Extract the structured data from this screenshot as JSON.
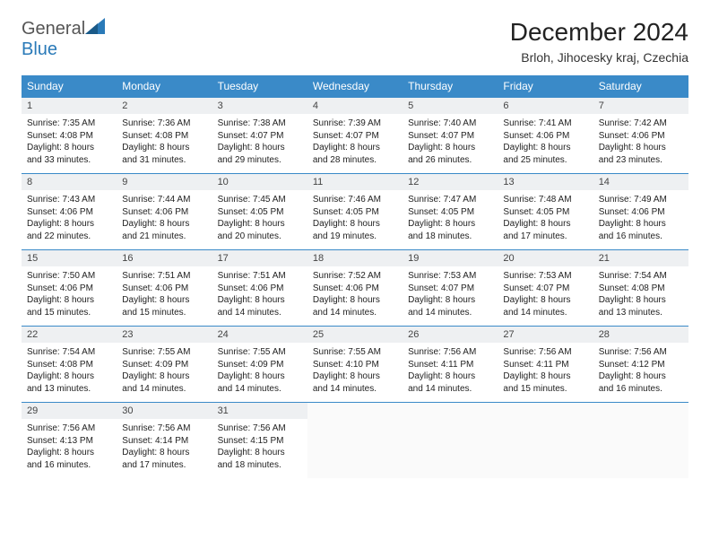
{
  "logo": {
    "part1": "General",
    "part2": "Blue"
  },
  "title": "December 2024",
  "location": "Brloh, Jihocesky kraj, Czechia",
  "day_headers": [
    "Sunday",
    "Monday",
    "Tuesday",
    "Wednesday",
    "Thursday",
    "Friday",
    "Saturday"
  ],
  "colors": {
    "header_bg": "#3a8ac8",
    "header_text": "#ffffff",
    "daynum_bg": "#eef0f2",
    "border": "#3a8ac8",
    "text": "#222222"
  },
  "typography": {
    "title_pt": 28,
    "header_pt": 12,
    "daynum_pt": 11,
    "cell_pt": 10
  },
  "weeks": [
    [
      {
        "n": "1",
        "sr": "7:35 AM",
        "ss": "4:08 PM",
        "dl": "8 hours and 33 minutes."
      },
      {
        "n": "2",
        "sr": "7:36 AM",
        "ss": "4:08 PM",
        "dl": "8 hours and 31 minutes."
      },
      {
        "n": "3",
        "sr": "7:38 AM",
        "ss": "4:07 PM",
        "dl": "8 hours and 29 minutes."
      },
      {
        "n": "4",
        "sr": "7:39 AM",
        "ss": "4:07 PM",
        "dl": "8 hours and 28 minutes."
      },
      {
        "n": "5",
        "sr": "7:40 AM",
        "ss": "4:07 PM",
        "dl": "8 hours and 26 minutes."
      },
      {
        "n": "6",
        "sr": "7:41 AM",
        "ss": "4:06 PM",
        "dl": "8 hours and 25 minutes."
      },
      {
        "n": "7",
        "sr": "7:42 AM",
        "ss": "4:06 PM",
        "dl": "8 hours and 23 minutes."
      }
    ],
    [
      {
        "n": "8",
        "sr": "7:43 AM",
        "ss": "4:06 PM",
        "dl": "8 hours and 22 minutes."
      },
      {
        "n": "9",
        "sr": "7:44 AM",
        "ss": "4:06 PM",
        "dl": "8 hours and 21 minutes."
      },
      {
        "n": "10",
        "sr": "7:45 AM",
        "ss": "4:05 PM",
        "dl": "8 hours and 20 minutes."
      },
      {
        "n": "11",
        "sr": "7:46 AM",
        "ss": "4:05 PM",
        "dl": "8 hours and 19 minutes."
      },
      {
        "n": "12",
        "sr": "7:47 AM",
        "ss": "4:05 PM",
        "dl": "8 hours and 18 minutes."
      },
      {
        "n": "13",
        "sr": "7:48 AM",
        "ss": "4:05 PM",
        "dl": "8 hours and 17 minutes."
      },
      {
        "n": "14",
        "sr": "7:49 AM",
        "ss": "4:06 PM",
        "dl": "8 hours and 16 minutes."
      }
    ],
    [
      {
        "n": "15",
        "sr": "7:50 AM",
        "ss": "4:06 PM",
        "dl": "8 hours and 15 minutes."
      },
      {
        "n": "16",
        "sr": "7:51 AM",
        "ss": "4:06 PM",
        "dl": "8 hours and 15 minutes."
      },
      {
        "n": "17",
        "sr": "7:51 AM",
        "ss": "4:06 PM",
        "dl": "8 hours and 14 minutes."
      },
      {
        "n": "18",
        "sr": "7:52 AM",
        "ss": "4:06 PM",
        "dl": "8 hours and 14 minutes."
      },
      {
        "n": "19",
        "sr": "7:53 AM",
        "ss": "4:07 PM",
        "dl": "8 hours and 14 minutes."
      },
      {
        "n": "20",
        "sr": "7:53 AM",
        "ss": "4:07 PM",
        "dl": "8 hours and 14 minutes."
      },
      {
        "n": "21",
        "sr": "7:54 AM",
        "ss": "4:08 PM",
        "dl": "8 hours and 13 minutes."
      }
    ],
    [
      {
        "n": "22",
        "sr": "7:54 AM",
        "ss": "4:08 PM",
        "dl": "8 hours and 13 minutes."
      },
      {
        "n": "23",
        "sr": "7:55 AM",
        "ss": "4:09 PM",
        "dl": "8 hours and 14 minutes."
      },
      {
        "n": "24",
        "sr": "7:55 AM",
        "ss": "4:09 PM",
        "dl": "8 hours and 14 minutes."
      },
      {
        "n": "25",
        "sr": "7:55 AM",
        "ss": "4:10 PM",
        "dl": "8 hours and 14 minutes."
      },
      {
        "n": "26",
        "sr": "7:56 AM",
        "ss": "4:11 PM",
        "dl": "8 hours and 14 minutes."
      },
      {
        "n": "27",
        "sr": "7:56 AM",
        "ss": "4:11 PM",
        "dl": "8 hours and 15 minutes."
      },
      {
        "n": "28",
        "sr": "7:56 AM",
        "ss": "4:12 PM",
        "dl": "8 hours and 16 minutes."
      }
    ],
    [
      {
        "n": "29",
        "sr": "7:56 AM",
        "ss": "4:13 PM",
        "dl": "8 hours and 16 minutes."
      },
      {
        "n": "30",
        "sr": "7:56 AM",
        "ss": "4:14 PM",
        "dl": "8 hours and 17 minutes."
      },
      {
        "n": "31",
        "sr": "7:56 AM",
        "ss": "4:15 PM",
        "dl": "8 hours and 18 minutes."
      },
      null,
      null,
      null,
      null
    ]
  ],
  "labels": {
    "sunrise": "Sunrise:",
    "sunset": "Sunset:",
    "daylight": "Daylight:"
  }
}
